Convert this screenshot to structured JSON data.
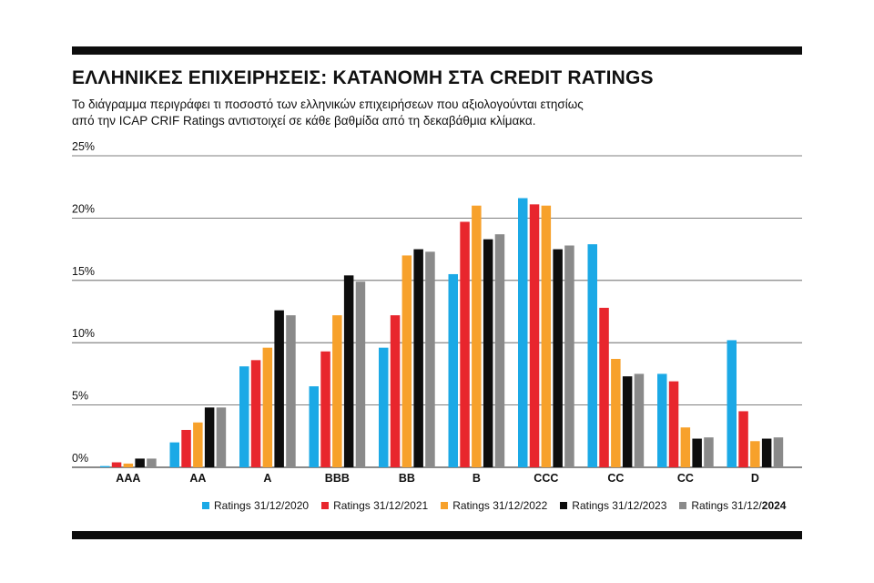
{
  "title": "ΕΛΛΗΝΙΚΕΣ ΕΠΙΧΕΙΡΗΣΕΙΣ: ΚΑΤΑΝΟΜΗ ΣΤΑ CREDIT RATINGS",
  "subtitle_line1": "Το διάγραμμα περιγράφει τι ποσοστό των ελληνικών επιχειρήσεων που αξιολογούνται ετησίως",
  "subtitle_line2": "από την ICAP CRIF Ratings αντιστοιχεί σε κάθε βαθμίδα από τη δεκαβάθμια κλίμακα.",
  "chart_data": {
    "type": "bar",
    "ylim": [
      0,
      25
    ],
    "yticks": [
      "0%",
      "5%",
      "10%",
      "15%",
      "20%",
      "25%"
    ],
    "grid": true,
    "legend_position": "bottom",
    "categories": [
      "AAA",
      "AA",
      "A",
      "BBB",
      "BB",
      "B",
      "CCC",
      "CC",
      "CC",
      "D"
    ],
    "series": [
      {
        "name": "Ratings 31/12/2020",
        "color": "#1ba9e6",
        "values": [
          0.1,
          2.0,
          8.1,
          6.5,
          9.6,
          15.5,
          21.6,
          17.9,
          7.5,
          10.2
        ]
      },
      {
        "name": "Ratings 31/12/2021",
        "color": "#e8262d",
        "values": [
          0.4,
          3.0,
          8.6,
          9.3,
          12.2,
          19.7,
          21.1,
          12.8,
          6.9,
          4.5
        ]
      },
      {
        "name": "Ratings 31/12/2022",
        "color": "#f7a12b",
        "values": [
          0.3,
          3.6,
          9.6,
          12.2,
          17.0,
          21.0,
          21.0,
          8.7,
          3.2,
          2.1
        ]
      },
      {
        "name": "Ratings 31/12/2023",
        "color": "#0d0d0d",
        "values": [
          0.7,
          4.8,
          12.6,
          15.4,
          17.5,
          18.3,
          17.5,
          7.3,
          2.3,
          2.3
        ]
      },
      {
        "name": "Ratings 31/12/2024",
        "color": "#8a8a8a",
        "values": [
          0.7,
          4.8,
          12.2,
          14.9,
          17.3,
          18.7,
          17.8,
          7.5,
          2.4,
          2.4
        ]
      }
    ]
  },
  "legend": [
    {
      "label": "Ratings 31/12/2020",
      "color": "#1ba9e6"
    },
    {
      "label": "Ratings 31/12/2021",
      "color": "#e8262d"
    },
    {
      "label": "Ratings 31/12/2022",
      "color": "#f7a12b"
    },
    {
      "label": "Ratings 31/12/2023",
      "color": "#0d0d0d"
    },
    {
      "label": "Ratings 31/12/",
      "label_bold": "2024",
      "color": "#8a8a8a"
    }
  ]
}
